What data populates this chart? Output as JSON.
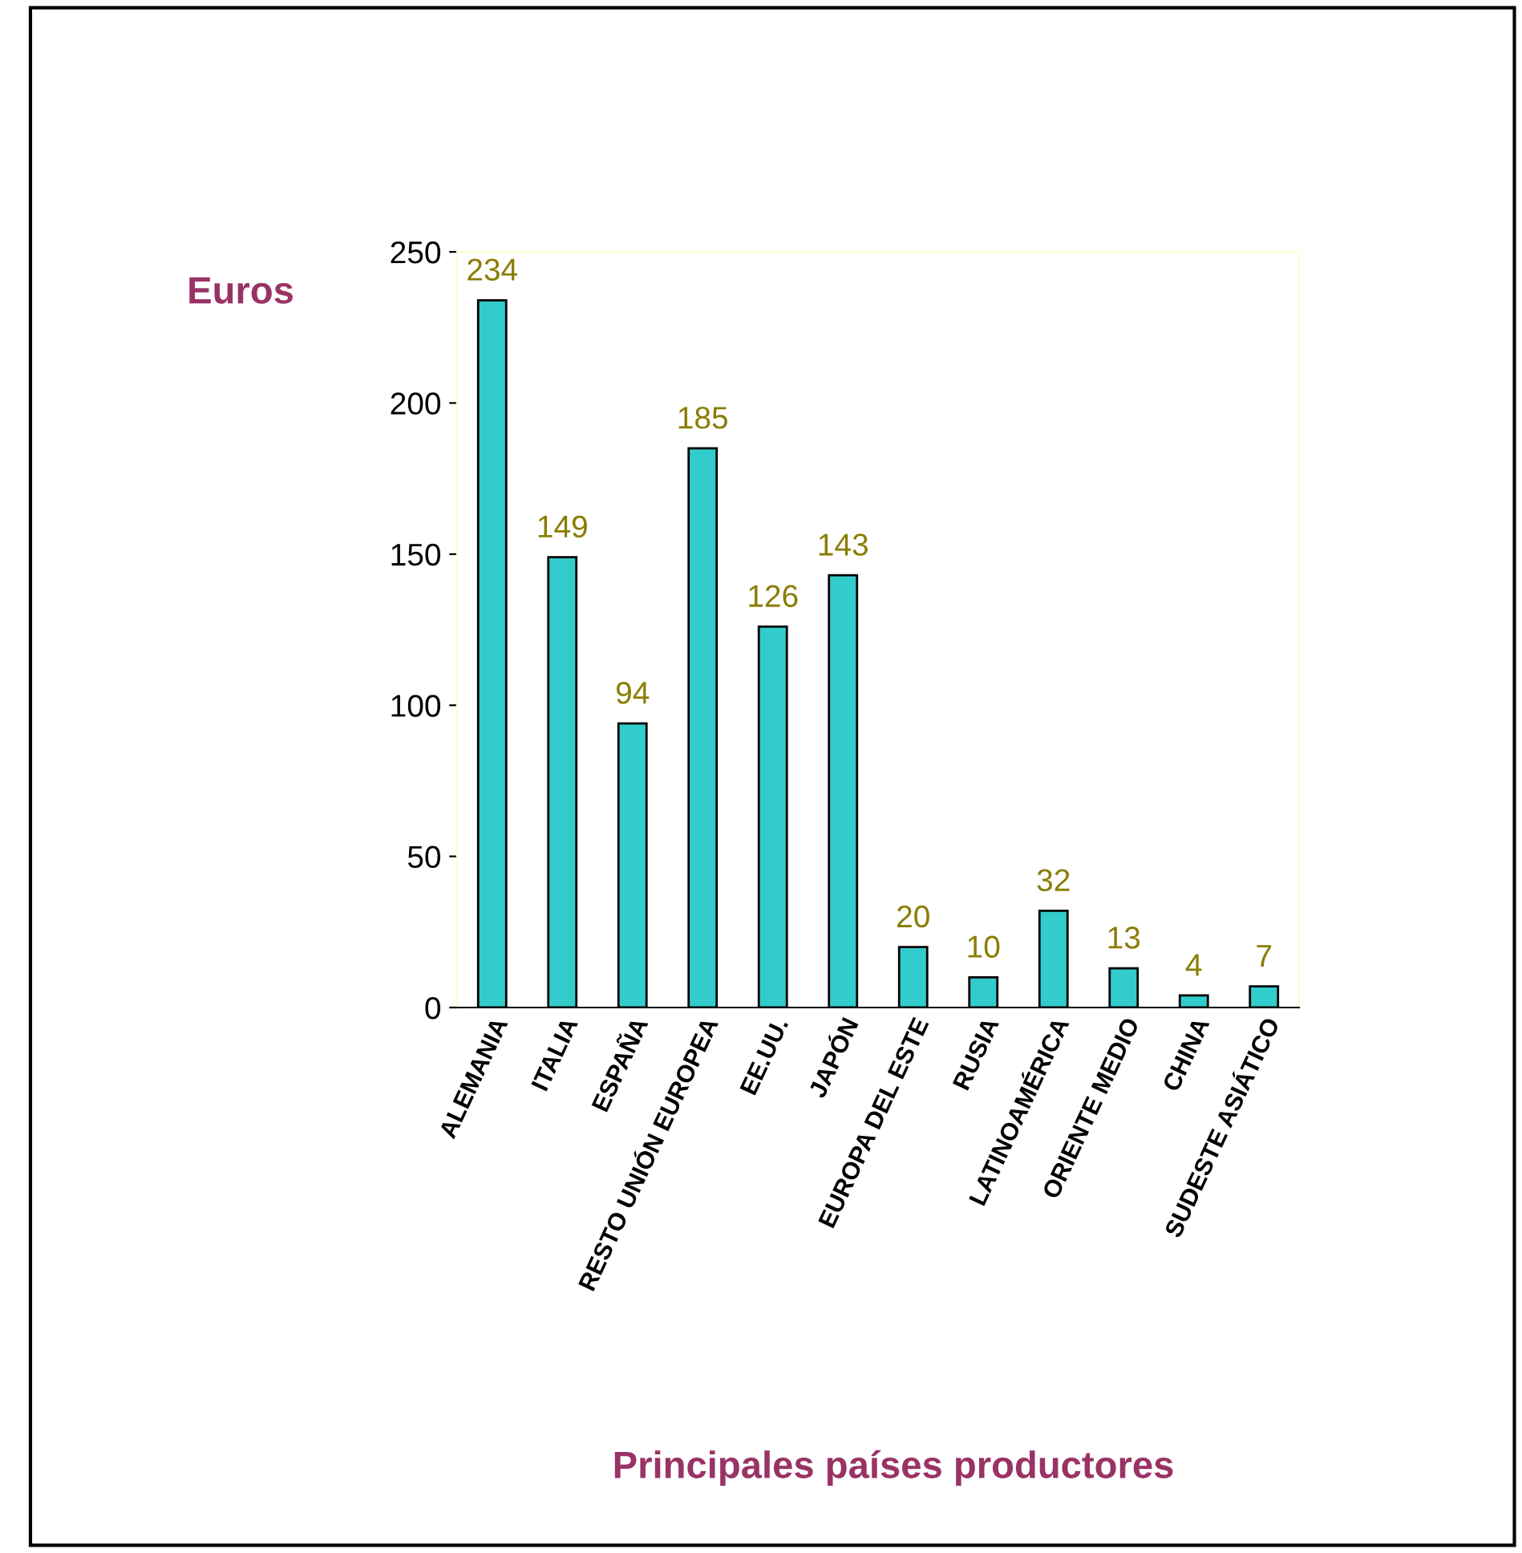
{
  "chart_data": {
    "type": "bar",
    "xlabel": "Principales países productores",
    "ylabel": "Euros",
    "categories": [
      "ALEMANIA",
      "ITALIA",
      "ESPAÑA",
      "RESTO UNIÓN EUROPEA",
      "EE.UU.",
      "JAPÓN",
      "EUROPA DEL ESTE",
      "RUSIA",
      "LATINOAMÉRICA",
      "ORIENTE MEDIO",
      "CHINA",
      "SUDESTE ASIÁTICO"
    ],
    "values": [
      234,
      149,
      94,
      185,
      126,
      143,
      20,
      10,
      32,
      13,
      4,
      7
    ],
    "color": "#33cccc",
    "ylim": [
      0,
      250
    ],
    "yticks": [
      0,
      50,
      100,
      150,
      200,
      250
    ],
    "grid": false,
    "data_labels": true
  }
}
